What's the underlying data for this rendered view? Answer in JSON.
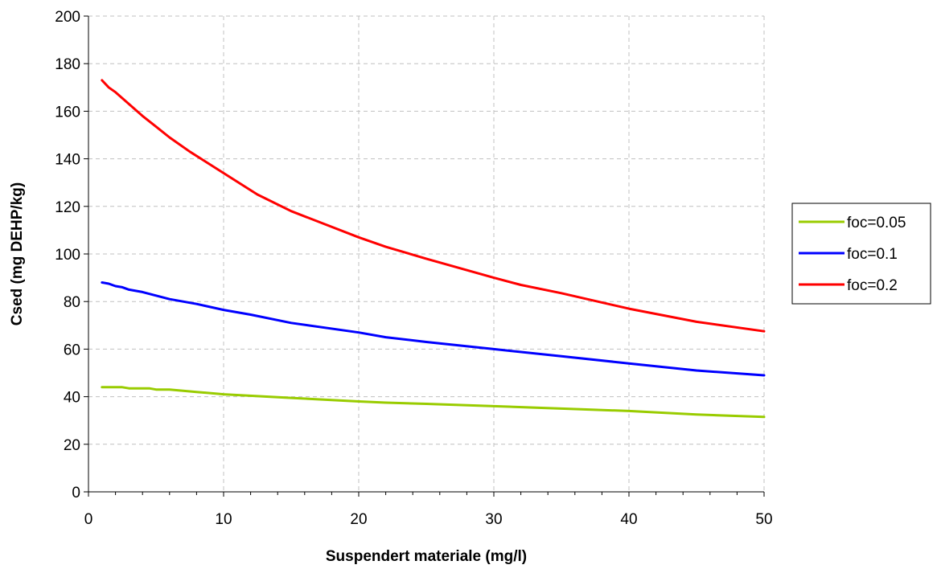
{
  "chart_data": {
    "type": "line",
    "title": "",
    "xlabel": "Suspendert materiale (mg/l)",
    "ylabel": "Csed (mg DEHP/kg)",
    "xlim": [
      0,
      50
    ],
    "ylim": [
      0,
      200
    ],
    "xticks": [
      "0",
      "10",
      "20",
      "30",
      "40",
      "50"
    ],
    "yticks": [
      "0",
      "20",
      "40",
      "60",
      "80",
      "100",
      "120",
      "140",
      "160",
      "180",
      "200"
    ],
    "grid": true,
    "legend_position": "right",
    "series": [
      {
        "name": "foc=0.05",
        "color": "#99cc00",
        "x": [
          1,
          2.5,
          3,
          4.5,
          5,
          6,
          8,
          10,
          15,
          20,
          22,
          25,
          30,
          35,
          40,
          45,
          50
        ],
        "y": [
          44,
          44,
          43.5,
          43.5,
          43,
          43,
          42,
          41,
          39.5,
          38,
          37.5,
          37,
          36,
          35,
          34,
          32.5,
          31.5
        ]
      },
      {
        "name": "foc=0.1",
        "color": "#0000ff",
        "x": [
          1,
          1.5,
          2,
          2.5,
          3,
          4,
          5,
          6,
          8,
          10,
          12,
          15,
          20,
          22,
          25,
          30,
          35,
          40,
          45,
          50
        ],
        "y": [
          88,
          87.5,
          86.5,
          86,
          85,
          84,
          82.5,
          81,
          79,
          76.5,
          74.5,
          71,
          67,
          65,
          63,
          60,
          57,
          54,
          51,
          49
        ]
      },
      {
        "name": "foc=0.2",
        "color": "#ff0000",
        "x": [
          1,
          1.5,
          2,
          2.5,
          3,
          4,
          5,
          6,
          7.5,
          10,
          12.5,
          15,
          17.5,
          20,
          22,
          25,
          30,
          32,
          35,
          40,
          45,
          50
        ],
        "y": [
          173,
          170,
          168,
          165.5,
          163,
          158,
          153.5,
          149,
          143,
          134,
          125,
          118,
          112.5,
          107,
          103,
          98,
          90,
          87,
          83.5,
          77,
          71.5,
          67.5
        ]
      }
    ]
  }
}
